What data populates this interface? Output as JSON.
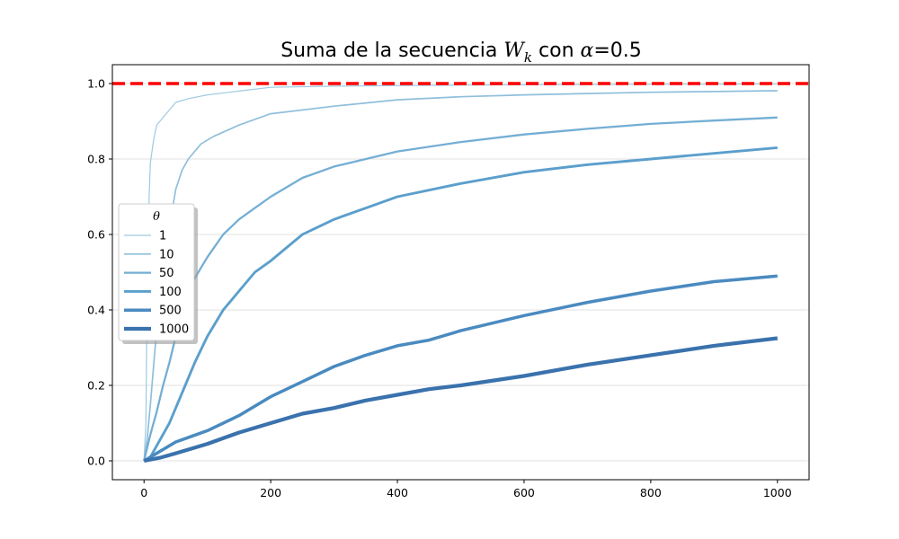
{
  "chart_data": {
    "type": "line",
    "title_parts": {
      "prefix": "Suma de la secuencia ",
      "var": "W",
      "sub": "k",
      "mid": " con ",
      "greek": "α",
      "suffix": "=0.5"
    },
    "xlabel": "",
    "ylabel": "",
    "xlim": [
      -50,
      1050
    ],
    "ylim": [
      -0.05,
      1.05
    ],
    "xticks": [
      0,
      200,
      400,
      600,
      800,
      1000
    ],
    "yticks": [
      0.0,
      0.2,
      0.4,
      0.6,
      0.8,
      1.0
    ],
    "grid": "horizontal",
    "reference_line": {
      "y": 1.0,
      "color": "#ff0000",
      "style": "dashed"
    },
    "legend": {
      "title": "θ",
      "placement": "center-left"
    },
    "series": [
      {
        "name": "1",
        "color": "#9ecae1",
        "x": [
          0,
          3,
          5,
          8,
          10,
          15,
          20,
          30,
          40,
          50,
          70,
          100,
          150,
          200,
          300,
          500,
          800,
          1000
        ],
        "y": [
          0.0,
          0.1,
          0.5,
          0.7,
          0.79,
          0.85,
          0.89,
          0.91,
          0.93,
          0.95,
          0.96,
          0.97,
          0.98,
          0.99,
          0.993,
          0.996,
          0.998,
          0.999
        ]
      },
      {
        "name": "10",
        "color": "#8fbfdc",
        "x": [
          0,
          5,
          10,
          20,
          30,
          40,
          50,
          60,
          70,
          90,
          110,
          150,
          200,
          300,
          400,
          500,
          600,
          800,
          1000
        ],
        "y": [
          0.0,
          0.06,
          0.15,
          0.35,
          0.5,
          0.62,
          0.72,
          0.77,
          0.8,
          0.84,
          0.86,
          0.89,
          0.92,
          0.94,
          0.957,
          0.965,
          0.97,
          0.977,
          0.981
        ]
      },
      {
        "name": "50",
        "color": "#74aed4",
        "x": [
          0,
          10,
          20,
          30,
          40,
          50,
          60,
          75,
          100,
          125,
          150,
          175,
          200,
          250,
          300,
          400,
          500,
          600,
          700,
          800,
          900,
          1000
        ],
        "y": [
          0.0,
          0.07,
          0.13,
          0.2,
          0.26,
          0.33,
          0.4,
          0.47,
          0.54,
          0.6,
          0.64,
          0.67,
          0.7,
          0.75,
          0.78,
          0.82,
          0.845,
          0.865,
          0.88,
          0.893,
          0.902,
          0.91
        ]
      },
      {
        "name": "100",
        "color": "#5b9fcc",
        "x": [
          0,
          10,
          20,
          40,
          60,
          80,
          100,
          125,
          150,
          175,
          200,
          250,
          300,
          350,
          400,
          500,
          600,
          700,
          800,
          900,
          1000
        ],
        "y": [
          0.0,
          0.01,
          0.04,
          0.1,
          0.18,
          0.26,
          0.33,
          0.4,
          0.45,
          0.5,
          0.53,
          0.6,
          0.64,
          0.67,
          0.7,
          0.735,
          0.765,
          0.785,
          0.8,
          0.815,
          0.83
        ]
      },
      {
        "name": "500",
        "color": "#4a8ac0",
        "x": [
          0,
          10,
          25,
          50,
          75,
          100,
          150,
          200,
          250,
          300,
          350,
          400,
          450,
          500,
          600,
          700,
          800,
          900,
          1000
        ],
        "y": [
          0.0,
          0.01,
          0.025,
          0.05,
          0.065,
          0.08,
          0.12,
          0.17,
          0.21,
          0.25,
          0.28,
          0.305,
          0.32,
          0.345,
          0.385,
          0.42,
          0.45,
          0.475,
          0.49
        ]
      },
      {
        "name": "1000",
        "color": "#3a72ad",
        "x": [
          0,
          25,
          50,
          100,
          150,
          200,
          250,
          300,
          350,
          400,
          450,
          500,
          600,
          700,
          800,
          900,
          1000
        ],
        "y": [
          0.0,
          0.008,
          0.02,
          0.045,
          0.075,
          0.1,
          0.125,
          0.14,
          0.16,
          0.175,
          0.19,
          0.2,
          0.225,
          0.255,
          0.28,
          0.305,
          0.325
        ]
      }
    ]
  }
}
